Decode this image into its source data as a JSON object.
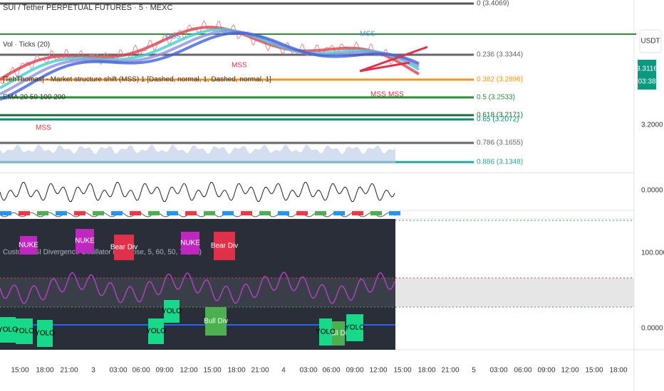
{
  "header": {
    "symbol": "SUI / Tether PERPETUAL FUTURES · 5 · MEXC",
    "indicators": [
      "Vol · Ticks (20)",
      "[TehThomas] - Market structure shift (MSS) 1 [Dashed, normal, 1, Dashed, normal, 1]",
      "EMA 20 50 100 200"
    ]
  },
  "fib_levels": [
    "0 (3.4069)",
    "0.236 (3.3344)",
    "0.382 (3.2896)",
    "0.5 (3.2533)",
    "0.618 (3.2171)",
    "0.65 (3.2072)",
    "0.786 (3.1655)",
    "0.886 (3.1348)"
  ],
  "price_scale": {
    "currency": "USDT",
    "last_price": "3.3116",
    "countdown": "03:38",
    "labels": [
      "3.2000",
      "0.0000",
      "100.0000",
      "0.0000"
    ]
  },
  "oscillator": {
    "title": "Custom RSI Divergence Oscillator (14, close, 5, 60, 50, 70, 30)"
  },
  "signals": [
    "YOLO",
    "YOLO",
    "YOLO",
    "YOLO",
    "YOLO",
    "YOLO",
    "YOLO",
    "Bull Div",
    "Bull Div",
    "Bear Div",
    "Bear Div",
    "NUKE",
    "NUKE",
    "NUKE",
    "MSS",
    "MSS",
    "MSS",
    "MSS",
    "MSS",
    "MSS"
  ],
  "time_axis": [
    "15:00",
    "18:00",
    "21:00",
    "3",
    "03:00",
    "06:00",
    "09:00",
    "12:00",
    "15:00",
    "18:00",
    "21:00",
    "4",
    "03:00",
    "06:00",
    "09:00",
    "12:00",
    "15:00",
    "18:00",
    "21:00",
    "5",
    "03:00",
    "06:00",
    "09:00",
    "12:00",
    "15:00",
    "18:00"
  ]
}
